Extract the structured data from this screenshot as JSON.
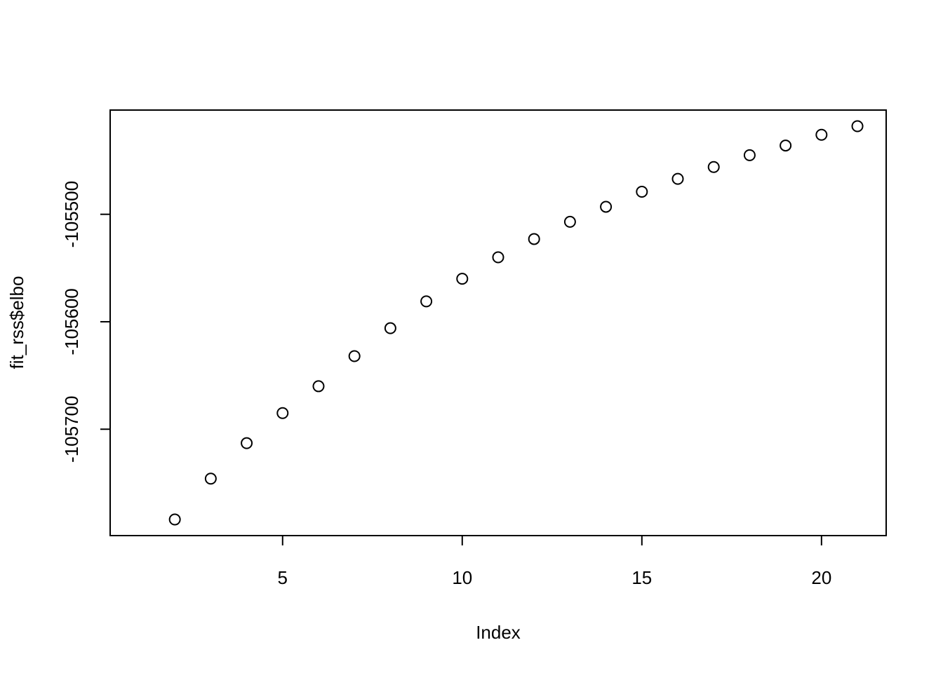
{
  "chart_data": {
    "type": "scatter",
    "title": "",
    "xlabel": "Index",
    "ylabel": "fit_rss$elbo",
    "xlim": [
      0.2,
      21.8
    ],
    "ylim": [
      -105799,
      -105403
    ],
    "xticks": [
      5,
      10,
      15,
      20
    ],
    "yticks": [
      -105700,
      -105600,
      -105500
    ],
    "xtick_labels": [
      "5",
      "10",
      "15",
      "20"
    ],
    "ytick_labels": [
      "-105700",
      "-105600",
      "-105500"
    ],
    "grid": false,
    "marker": "open-circle",
    "color": "#000000",
    "x": [
      2,
      3,
      4,
      5,
      6,
      7,
      8,
      9,
      10,
      11,
      12,
      13,
      14,
      15,
      16,
      17,
      18,
      19,
      20,
      21
    ],
    "y": [
      -105784,
      -105746,
      -105713,
      -105685,
      -105660,
      -105632,
      -105606,
      -105581,
      -105560,
      -105540,
      -105523,
      -105507,
      -105493,
      -105479,
      -105467,
      -105456,
      -105445,
      -105436,
      -105426,
      -105418
    ]
  }
}
